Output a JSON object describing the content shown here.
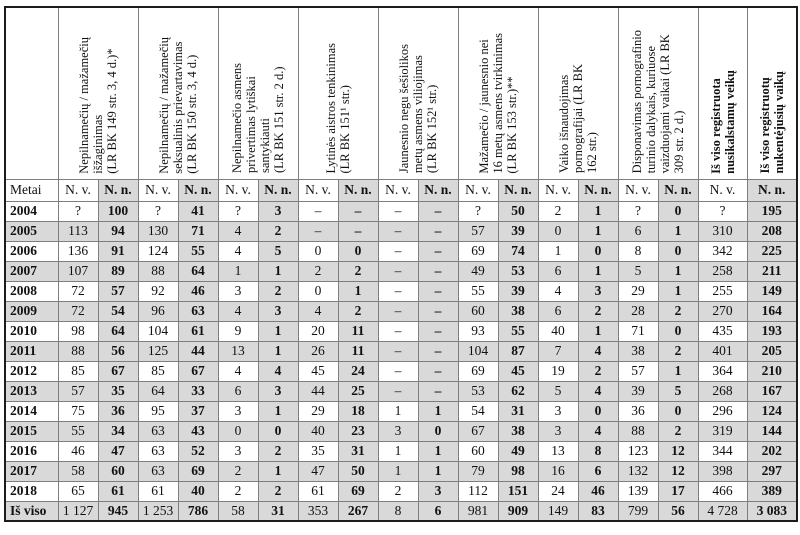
{
  "table": {
    "metai_label": "Metai",
    "nv_label": "N. v.",
    "nn_label": "N. n.",
    "total_label": "Iš viso",
    "colors": {
      "shaded_cell": "#d9d9d9",
      "inner_border": "#7e7e7e",
      "outer_border": "#1c1c1c",
      "text": "#111111"
    },
    "columns": [
      {
        "title": "Nepilnamečių / mažamečių\nišžaginimas\n(LR BK 149 str. 3, 4 d.)*",
        "bold": false,
        "span": 2
      },
      {
        "title": "Nepilnamečių / mažamečių\nseksualinis prievartavimas\n(LR BK 150 str. 3, 4 d.)",
        "bold": false,
        "span": 2
      },
      {
        "title": "Nepilnamečio asmens\nprivertimas lytiškai\nsantykiauti\n(LR BK 151 str. 2 d.)",
        "bold": false,
        "span": 2
      },
      {
        "title": "Lytinės aistros tenkinimas\n(LR BK 151¹ str.)",
        "bold": false,
        "span": 2
      },
      {
        "title": "Jaunesnio negu šešiolikos\nmetų asmens viliojimas\n(LR BK 152¹ str.)",
        "bold": false,
        "span": 2
      },
      {
        "title": "Mažamečio / jaunesnio nei\n16 metų asmens tvirkinimas\n(LR BK 153 str.)**",
        "bold": false,
        "span": 2
      },
      {
        "title": "Vaiko išnaudojimas\npornografijai (LR BK\n162 str.)",
        "bold": false,
        "span": 2
      },
      {
        "title": "Disponavimas pornografinio\nturinio dalykais, kuriuose\nvaizduojami vaikai (LR BK\n309 str. 2 d.)",
        "bold": false,
        "span": 2
      },
      {
        "title": "Iš viso registruota\nnusikalstamų veikų",
        "bold": true,
        "span": 1
      },
      {
        "title": "Iš viso registruotų\nnukentėjusių vaikų",
        "bold": true,
        "span": 1
      }
    ],
    "rows": [
      {
        "year": "2004",
        "values": [
          "?",
          "100",
          "?",
          "41",
          "?",
          "3",
          "–",
          "–",
          "–",
          "–",
          "?",
          "50",
          "2",
          "1",
          "?",
          "0",
          "?",
          "195"
        ]
      },
      {
        "year": "2005",
        "values": [
          "113",
          "94",
          "130",
          "71",
          "4",
          "2",
          "–",
          "–",
          "–",
          "–",
          "57",
          "39",
          "0",
          "1",
          "6",
          "1",
          "310",
          "208"
        ]
      },
      {
        "year": "2006",
        "values": [
          "136",
          "91",
          "124",
          "55",
          "4",
          "5",
          "0",
          "0",
          "–",
          "–",
          "69",
          "74",
          "1",
          "0",
          "8",
          "0",
          "342",
          "225"
        ]
      },
      {
        "year": "2007",
        "values": [
          "107",
          "89",
          "88",
          "64",
          "1",
          "1",
          "2",
          "2",
          "–",
          "–",
          "49",
          "53",
          "6",
          "1",
          "5",
          "1",
          "258",
          "211"
        ]
      },
      {
        "year": "2008",
        "values": [
          "72",
          "57",
          "92",
          "46",
          "3",
          "2",
          "0",
          "1",
          "–",
          "–",
          "55",
          "39",
          "4",
          "3",
          "29",
          "1",
          "255",
          "149"
        ]
      },
      {
        "year": "2009",
        "values": [
          "72",
          "54",
          "96",
          "63",
          "4",
          "3",
          "4",
          "2",
          "–",
          "–",
          "60",
          "38",
          "6",
          "2",
          "28",
          "2",
          "270",
          "164"
        ]
      },
      {
        "year": "2010",
        "values": [
          "98",
          "64",
          "104",
          "61",
          "9",
          "1",
          "20",
          "11",
          "–",
          "–",
          "93",
          "55",
          "40",
          "1",
          "71",
          "0",
          "435",
          "193"
        ]
      },
      {
        "year": "2011",
        "values": [
          "88",
          "56",
          "125",
          "44",
          "13",
          "1",
          "26",
          "11",
          "–",
          "–",
          "104",
          "87",
          "7",
          "4",
          "38",
          "2",
          "401",
          "205"
        ]
      },
      {
        "year": "2012",
        "values": [
          "85",
          "67",
          "85",
          "67",
          "4",
          "4",
          "45",
          "24",
          "–",
          "–",
          "69",
          "45",
          "19",
          "2",
          "57",
          "1",
          "364",
          "210"
        ]
      },
      {
        "year": "2013",
        "values": [
          "57",
          "35",
          "64",
          "33",
          "6",
          "3",
          "44",
          "25",
          "–",
          "–",
          "53",
          "62",
          "5",
          "4",
          "39",
          "5",
          "268",
          "167"
        ]
      },
      {
        "year": "2014",
        "values": [
          "75",
          "36",
          "95",
          "37",
          "3",
          "1",
          "29",
          "18",
          "1",
          "1",
          "54",
          "31",
          "3",
          "0",
          "36",
          "0",
          "296",
          "124"
        ]
      },
      {
        "year": "2015",
        "values": [
          "55",
          "34",
          "63",
          "43",
          "0",
          "0",
          "40",
          "23",
          "3",
          "0",
          "67",
          "38",
          "3",
          "4",
          "88",
          "2",
          "319",
          "144"
        ]
      },
      {
        "year": "2016",
        "values": [
          "46",
          "47",
          "63",
          "52",
          "3",
          "2",
          "35",
          "31",
          "1",
          "1",
          "60",
          "49",
          "13",
          "8",
          "123",
          "12",
          "344",
          "202"
        ]
      },
      {
        "year": "2017",
        "values": [
          "58",
          "60",
          "63",
          "69",
          "2",
          "1",
          "47",
          "50",
          "1",
          "1",
          "79",
          "98",
          "16",
          "6",
          "132",
          "12",
          "398",
          "297"
        ]
      },
      {
        "year": "2018",
        "values": [
          "65",
          "61",
          "61",
          "40",
          "2",
          "2",
          "61",
          "69",
          "2",
          "3",
          "112",
          "151",
          "24",
          "46",
          "139",
          "17",
          "466",
          "389"
        ]
      }
    ],
    "total": {
      "label": "Iš viso",
      "values": [
        "1 127",
        "945",
        "1 253",
        "786",
        "58",
        "31",
        "353",
        "267",
        "8",
        "6",
        "981",
        "909",
        "149",
        "83",
        "799",
        "56",
        "4 728",
        "3 083"
      ]
    }
  }
}
